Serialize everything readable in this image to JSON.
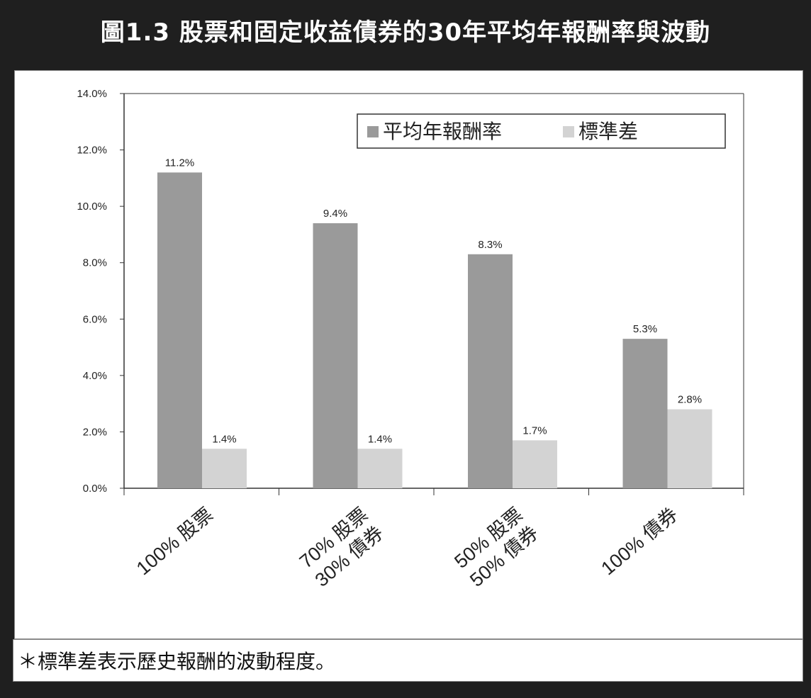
{
  "header": {
    "title": "圖1.3 股票和固定收益債券的30年平均年報酬率與波動"
  },
  "footnote": "＊標準差表示歷史報酬的波動程度。",
  "colors": {
    "background": "#1f1f1f",
    "panel": "#ffffff",
    "series_mean": "#9a9a9a",
    "series_std": "#d3d3d3",
    "axis": "#333333"
  },
  "chart_data": {
    "type": "bar",
    "title": "",
    "xlabel": "",
    "ylabel": "",
    "ylim": [
      0,
      14
    ],
    "yticks": [
      "0.0%",
      "2.0%",
      "4.0%",
      "6.0%",
      "8.0%",
      "10.0%",
      "12.0%",
      "14.0%"
    ],
    "categories": [
      [
        "100% 股票"
      ],
      [
        "70% 股票",
        "30% 債券"
      ],
      [
        "50% 股票",
        "50% 債券"
      ],
      [
        "100% 債券"
      ]
    ],
    "series": [
      {
        "name": "平均年報酬率",
        "values": [
          11.2,
          9.4,
          8.3,
          5.3
        ],
        "labels": [
          "11.2%",
          "9.4%",
          "8.3%",
          "5.3%"
        ]
      },
      {
        "name": "標準差",
        "values": [
          1.4,
          1.4,
          1.7,
          2.8
        ],
        "labels": [
          "1.4%",
          "1.4%",
          "1.7%",
          "2.8%"
        ]
      }
    ],
    "legend": "top-right",
    "grid": false
  }
}
